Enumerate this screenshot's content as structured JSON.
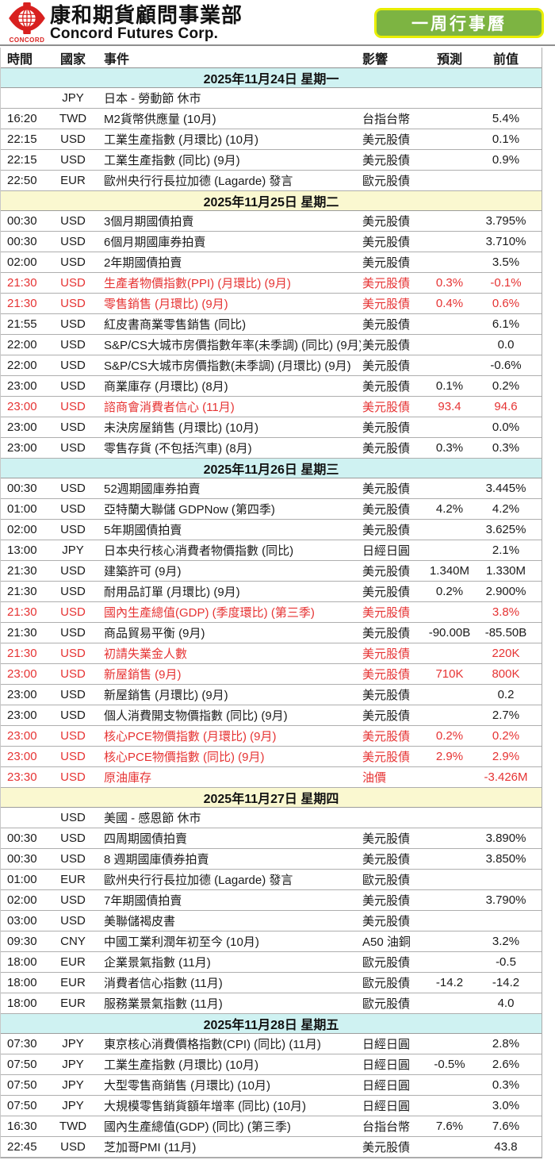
{
  "header": {
    "logo": {
      "logo_text": "CONCORD",
      "brand_cn": "康和期貨顧問事業部",
      "brand_en": "Concord Futures Corp."
    },
    "button": {
      "label": "一周行事曆"
    }
  },
  "colors": {
    "red_text": "#e63333",
    "cyan_header": "#cff2f2",
    "yellow_header": "#faf8d0",
    "button_green": "#7db442",
    "button_border": "#e8ee00",
    "logo_red": "#d8201f"
  },
  "table": {
    "columns": [
      "時間",
      "國家",
      "事件",
      "影響",
      "預測",
      "前值"
    ],
    "sections": [
      {
        "date": "2025年11月24日  星期一",
        "tint": "cyan",
        "rows": [
          {
            "time": "",
            "country": "JPY",
            "event": "日本 - 勞動節 休市",
            "impact": "",
            "forecast": "",
            "previous": "",
            "red": false
          },
          {
            "time": "16:20",
            "country": "TWD",
            "event": "M2貨幣供應量 (10月)",
            "impact": "台指台幣",
            "forecast": "",
            "previous": "5.4%",
            "red": false
          },
          {
            "time": "22:15",
            "country": "USD",
            "event": "工業生產指數 (月環比) (10月)",
            "impact": "美元股債",
            "forecast": "",
            "previous": "0.1%",
            "red": false
          },
          {
            "time": "22:15",
            "country": "USD",
            "event": "工業生產指數 (同比) (9月)",
            "impact": "美元股債",
            "forecast": "",
            "previous": "0.9%",
            "red": false
          },
          {
            "time": "22:50",
            "country": "EUR",
            "event": "歐州央行行長拉加德 (Lagarde) 發言",
            "impact": "歐元股債",
            "forecast": "",
            "previous": "",
            "red": false
          }
        ]
      },
      {
        "date": "2025年11月25日  星期二",
        "tint": "yellow",
        "rows": [
          {
            "time": "00:30",
            "country": "USD",
            "event": "3個月期國債拍賣",
            "impact": "美元股債",
            "forecast": "",
            "previous": "3.795%",
            "red": false
          },
          {
            "time": "00:30",
            "country": "USD",
            "event": "6個月期國庫券拍賣",
            "impact": "美元股債",
            "forecast": "",
            "previous": "3.710%",
            "red": false
          },
          {
            "time": "02:00",
            "country": "USD",
            "event": "2年期國債拍賣",
            "impact": "美元股債",
            "forecast": "",
            "previous": "3.5%",
            "red": false
          },
          {
            "time": "21:30",
            "country": "USD",
            "event": "生產者物價指數(PPI) (月環比) (9月)",
            "impact": "美元股債",
            "forecast": "0.3%",
            "previous": "-0.1%",
            "red": true
          },
          {
            "time": "21:30",
            "country": "USD",
            "event": "零售銷售 (月環比) (9月)",
            "impact": "美元股債",
            "forecast": "0.4%",
            "previous": "0.6%",
            "red": true
          },
          {
            "time": "21:55",
            "country": "USD",
            "event": "紅皮書商業零售銷售 (同比)",
            "impact": "美元股債",
            "forecast": "",
            "previous": "6.1%",
            "red": false
          },
          {
            "time": "22:00",
            "country": "USD",
            "event": "S&P/CS大城市房價指數年率(未季調) (同比) (9月)",
            "impact": "美元股債",
            "forecast": "",
            "previous": "0.0",
            "red": false
          },
          {
            "time": "22:00",
            "country": "USD",
            "event": "S&P/CS大城市房價指數(未季調) (月環比) (9月)",
            "impact": "美元股債",
            "forecast": "",
            "previous": "-0.6%",
            "red": false
          },
          {
            "time": "23:00",
            "country": "USD",
            "event": "商業庫存 (月環比) (8月)",
            "impact": "美元股債",
            "forecast": "0.1%",
            "previous": "0.2%",
            "red": false
          },
          {
            "time": "23:00",
            "country": "USD",
            "event": "諮商會消費者信心 (11月)",
            "impact": "美元股債",
            "forecast": "93.4",
            "previous": "94.6",
            "red": true
          },
          {
            "time": "23:00",
            "country": "USD",
            "event": "未決房屋銷售 (月環比) (10月)",
            "impact": "美元股債",
            "forecast": "",
            "previous": "0.0%",
            "red": false
          },
          {
            "time": "23:00",
            "country": "USD",
            "event": "零售存貨 (不包括汽車) (8月)",
            "impact": "美元股債",
            "forecast": "0.3%",
            "previous": "0.3%",
            "red": false
          }
        ]
      },
      {
        "date": "2025年11月26日  星期三",
        "tint": "cyan",
        "rows": [
          {
            "time": "00:30",
            "country": "USD",
            "event": "52週期國庫券拍賣",
            "impact": "美元股債",
            "forecast": "",
            "previous": "3.445%",
            "red": false
          },
          {
            "time": "01:00",
            "country": "USD",
            "event": "亞特蘭大聯儲 GDPNow (第四季)",
            "impact": "美元股債",
            "forecast": "4.2%",
            "previous": "4.2%",
            "red": false
          },
          {
            "time": "02:00",
            "country": "USD",
            "event": "5年期國債拍賣",
            "impact": "美元股債",
            "forecast": "",
            "previous": "3.625%",
            "red": false
          },
          {
            "time": "13:00",
            "country": "JPY",
            "event": "日本央行核心消費者物價指數 (同比)",
            "impact": "日經日圓",
            "forecast": "",
            "previous": "2.1%",
            "red": false
          },
          {
            "time": "21:30",
            "country": "USD",
            "event": "建築許可 (9月)",
            "impact": "美元股債",
            "forecast": "1.340M",
            "previous": "1.330M",
            "red": false
          },
          {
            "time": "21:30",
            "country": "USD",
            "event": "耐用品訂單 (月環比) (9月)",
            "impact": "美元股債",
            "forecast": "0.2%",
            "previous": "2.900%",
            "red": false
          },
          {
            "time": "21:30",
            "country": "USD",
            "event": "國內生產總值(GDP) (季度環比) (第三季)",
            "impact": "美元股債",
            "forecast": "",
            "previous": "3.8%",
            "red": true
          },
          {
            "time": "21:30",
            "country": "USD",
            "event": "商品貿易平衡 (9月)",
            "impact": "美元股債",
            "forecast": "-90.00B",
            "previous": "-85.50B",
            "red": false
          },
          {
            "time": "21:30",
            "country": "USD",
            "event": "初請失業金人數",
            "impact": "美元股債",
            "forecast": "",
            "previous": "220K",
            "red": true
          },
          {
            "time": "23:00",
            "country": "USD",
            "event": "新屋銷售 (9月)",
            "impact": "美元股債",
            "forecast": "710K",
            "previous": "800K",
            "red": true
          },
          {
            "time": "23:00",
            "country": "USD",
            "event": "新屋銷售 (月環比) (9月)",
            "impact": "美元股債",
            "forecast": "",
            "previous": "0.2",
            "red": false
          },
          {
            "time": "23:00",
            "country": "USD",
            "event": "個人消費開支物價指數 (同比) (9月)",
            "impact": "美元股債",
            "forecast": "",
            "previous": "2.7%",
            "red": false
          },
          {
            "time": "23:00",
            "country": "USD",
            "event": "核心PCE物價指數 (月環比) (9月)",
            "impact": "美元股債",
            "forecast": "0.2%",
            "previous": "0.2%",
            "red": true
          },
          {
            "time": "23:00",
            "country": "USD",
            "event": "核心PCE物價指數 (同比) (9月)",
            "impact": "美元股債",
            "forecast": "2.9%",
            "previous": "2.9%",
            "red": true
          },
          {
            "time": "23:30",
            "country": "USD",
            "event": "原油庫存",
            "impact": "油價",
            "forecast": "",
            "previous": "-3.426M",
            "red": true
          }
        ]
      },
      {
        "date": "2025年11月27日  星期四",
        "tint": "yellow",
        "rows": [
          {
            "time": "",
            "country": "USD",
            "event": "美國 - 感恩節 休市",
            "impact": "",
            "forecast": "",
            "previous": "",
            "red": false
          },
          {
            "time": "00:30",
            "country": "USD",
            "event": "四周期國債拍賣",
            "impact": "美元股債",
            "forecast": "",
            "previous": "3.890%",
            "red": false
          },
          {
            "time": "00:30",
            "country": "USD",
            "event": "8 週期國庫債券拍賣",
            "impact": "美元股債",
            "forecast": "",
            "previous": "3.850%",
            "red": false
          },
          {
            "time": "01:00",
            "country": "EUR",
            "event": "歐州央行行長拉加德 (Lagarde) 發言",
            "impact": "歐元股債",
            "forecast": "",
            "previous": "",
            "red": false
          },
          {
            "time": "02:00",
            "country": "USD",
            "event": "7年期國債拍賣",
            "impact": "美元股債",
            "forecast": "",
            "previous": "3.790%",
            "red": false
          },
          {
            "time": "03:00",
            "country": "USD",
            "event": "美聯儲褐皮書",
            "impact": "美元股債",
            "forecast": "",
            "previous": "",
            "red": false
          },
          {
            "time": "09:30",
            "country": "CNY",
            "event": "中國工業利潤年初至今 (10月)",
            "impact": "A50 油銅",
            "forecast": "",
            "previous": "3.2%",
            "red": false
          },
          {
            "time": "18:00",
            "country": "EUR",
            "event": "企業景氣指數 (11月)",
            "impact": "歐元股債",
            "forecast": "",
            "previous": "-0.5",
            "red": false
          },
          {
            "time": "18:00",
            "country": "EUR",
            "event": "消費者信心指數 (11月)",
            "impact": "歐元股債",
            "forecast": "-14.2",
            "previous": "-14.2",
            "red": false
          },
          {
            "time": "18:00",
            "country": "EUR",
            "event": "服務業景氣指數 (11月)",
            "impact": "歐元股債",
            "forecast": "",
            "previous": "4.0",
            "red": false
          }
        ]
      },
      {
        "date": "2025年11月28日  星期五",
        "tint": "cyan",
        "rows": [
          {
            "time": "07:30",
            "country": "JPY",
            "event": "東京核心消費價格指數(CPI) (同比) (11月)",
            "impact": "日經日圓",
            "forecast": "",
            "previous": "2.8%",
            "red": false
          },
          {
            "time": "07:50",
            "country": "JPY",
            "event": "工業生產指數 (月環比) (10月)",
            "impact": "日經日圓",
            "forecast": "-0.5%",
            "previous": "2.6%",
            "red": false
          },
          {
            "time": "07:50",
            "country": "JPY",
            "event": "大型零售商銷售 (月環比) (10月)",
            "impact": "日經日圓",
            "forecast": "",
            "previous": "0.3%",
            "red": false
          },
          {
            "time": "07:50",
            "country": "JPY",
            "event": "大規模零售銷貨額年增率 (同比) (10月)",
            "impact": "日經日圓",
            "forecast": "",
            "previous": "3.0%",
            "red": false
          },
          {
            "time": "16:30",
            "country": "TWD",
            "event": "國內生產總值(GDP) (同比) (第三季)",
            "impact": "台指台幣",
            "forecast": "7.6%",
            "previous": "7.6%",
            "red": false
          },
          {
            "time": "22:45",
            "country": "USD",
            "event": "芝加哥PMI (11月)",
            "impact": "美元股債",
            "forecast": "",
            "previous": "43.8",
            "red": false
          }
        ]
      }
    ]
  }
}
